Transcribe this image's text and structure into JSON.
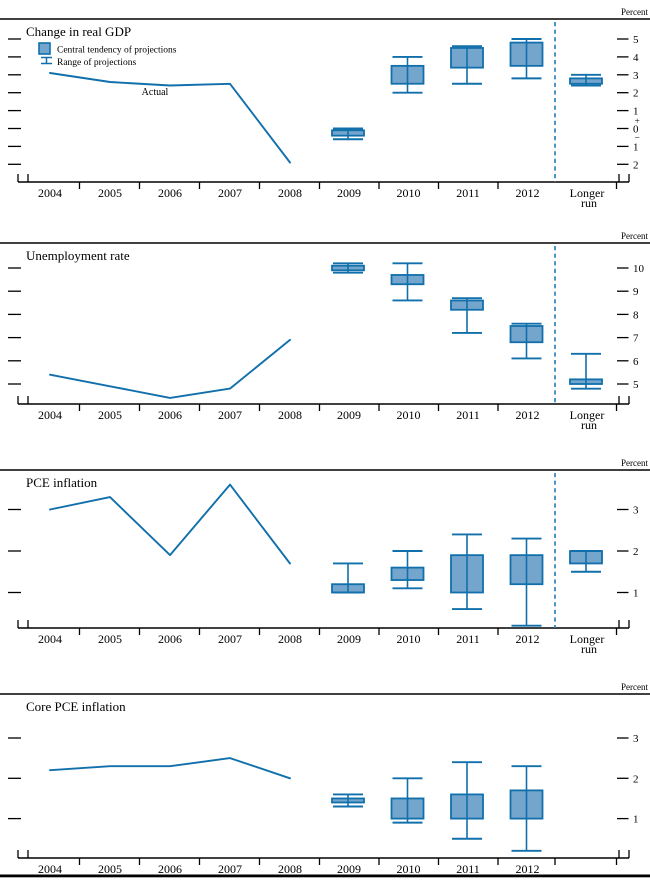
{
  "figure": {
    "unit_label": "Percent",
    "actual_label": "Actual",
    "legend": {
      "central_tendency_label": "Central tendency of projections",
      "range_label": "Range of projections"
    },
    "years": [
      "2004",
      "2005",
      "2006",
      "2007",
      "2008"
    ],
    "projection_years": [
      "2009",
      "2010",
      "2011",
      "2012"
    ],
    "longer_run_label": [
      "Longer",
      "run"
    ],
    "sign_plus": "+",
    "sign_minus": "−",
    "colors": {
      "blue_stroke": "#1170ab",
      "box_fill": "#73a5cd",
      "dashed_line": "#1e7cb8",
      "black": "#000000"
    }
  },
  "chart_data": [
    {
      "type": "box-line",
      "title": "Change in real GDP",
      "ylabel": "Percent",
      "y_ticks": [
        5,
        4,
        3,
        2,
        1,
        0,
        -1,
        -2
      ],
      "y_tick_labels": [
        "5",
        "4",
        "3",
        "2",
        "1",
        "0",
        "1",
        "2"
      ],
      "signed_zero": true,
      "legend_shown": true,
      "actual_label_shown": true,
      "has_longer_run": true,
      "actual": {
        "x": [
          2004,
          2005,
          2006,
          2007,
          2008
        ],
        "y": [
          3.1,
          2.6,
          2.4,
          2.5,
          -1.9
        ]
      },
      "projections": {
        "categories": [
          "2009",
          "2010",
          "2011",
          "2012",
          "Longer run"
        ],
        "central_tendency": [
          [
            -0.4,
            -0.1
          ],
          [
            2.5,
            3.5
          ],
          [
            3.4,
            4.5
          ],
          [
            3.5,
            4.8
          ],
          [
            2.5,
            2.8
          ]
        ],
        "range": [
          [
            -0.6,
            0.0
          ],
          [
            2.0,
            4.0
          ],
          [
            2.5,
            4.6
          ],
          [
            2.8,
            5.0
          ],
          [
            2.4,
            3.0
          ]
        ]
      }
    },
    {
      "type": "box-line",
      "title": "Unemployment rate",
      "ylabel": "Percent",
      "y_ticks": [
        10,
        9,
        8,
        7,
        6,
        5
      ],
      "y_tick_labels": [
        "10",
        "9",
        "8",
        "7",
        "6",
        "5"
      ],
      "signed_zero": false,
      "legend_shown": false,
      "actual_label_shown": false,
      "has_longer_run": true,
      "actual": {
        "x": [
          2004,
          2005,
          2006,
          2007,
          2008
        ],
        "y": [
          5.4,
          4.9,
          4.4,
          4.8,
          6.9
        ]
      },
      "projections": {
        "categories": [
          "2009",
          "2010",
          "2011",
          "2012",
          "Longer run"
        ],
        "central_tendency": [
          [
            9.9,
            10.1
          ],
          [
            9.3,
            9.7
          ],
          [
            8.2,
            8.6
          ],
          [
            6.8,
            7.5
          ],
          [
            5.0,
            5.2
          ]
        ],
        "range": [
          [
            9.8,
            10.2
          ],
          [
            8.6,
            10.2
          ],
          [
            7.2,
            8.7
          ],
          [
            6.1,
            7.6
          ],
          [
            4.8,
            6.3
          ]
        ]
      }
    },
    {
      "type": "box-line",
      "title": "PCE inflation",
      "ylabel": "Percent",
      "y_ticks": [
        3,
        2,
        1
      ],
      "y_tick_labels": [
        "3",
        "2",
        "1"
      ],
      "signed_zero": false,
      "legend_shown": false,
      "actual_label_shown": false,
      "has_longer_run": true,
      "actual": {
        "x": [
          2004,
          2005,
          2006,
          2007,
          2008
        ],
        "y": [
          3.0,
          3.3,
          1.9,
          3.6,
          1.7
        ]
      },
      "projections": {
        "categories": [
          "2009",
          "2010",
          "2011",
          "2012",
          "Longer run"
        ],
        "central_tendency": [
          [
            1.0,
            1.2
          ],
          [
            1.3,
            1.6
          ],
          [
            1.0,
            1.9
          ],
          [
            1.2,
            1.9
          ],
          [
            1.7,
            2.0
          ]
        ],
        "range": [
          [
            1.0,
            1.7
          ],
          [
            1.1,
            2.0
          ],
          [
            0.6,
            2.4
          ],
          [
            0.2,
            2.3
          ],
          [
            1.5,
            2.0
          ]
        ]
      }
    },
    {
      "type": "box-line",
      "title": "Core PCE inflation",
      "ylabel": "Percent",
      "y_ticks": [
        3,
        2,
        1
      ],
      "y_tick_labels": [
        "3",
        "2",
        "1"
      ],
      "signed_zero": false,
      "legend_shown": false,
      "actual_label_shown": false,
      "has_longer_run": false,
      "actual": {
        "x": [
          2004,
          2005,
          2006,
          2007,
          2008
        ],
        "y": [
          2.2,
          2.3,
          2.3,
          2.5,
          2.0
        ]
      },
      "projections": {
        "categories": [
          "2009",
          "2010",
          "2011",
          "2012"
        ],
        "central_tendency": [
          [
            1.4,
            1.5
          ],
          [
            1.0,
            1.5
          ],
          [
            1.0,
            1.6
          ],
          [
            1.0,
            1.7
          ]
        ],
        "range": [
          [
            1.3,
            1.6
          ],
          [
            0.9,
            2.0
          ],
          [
            0.5,
            2.4
          ],
          [
            0.2,
            2.3
          ]
        ]
      }
    }
  ]
}
